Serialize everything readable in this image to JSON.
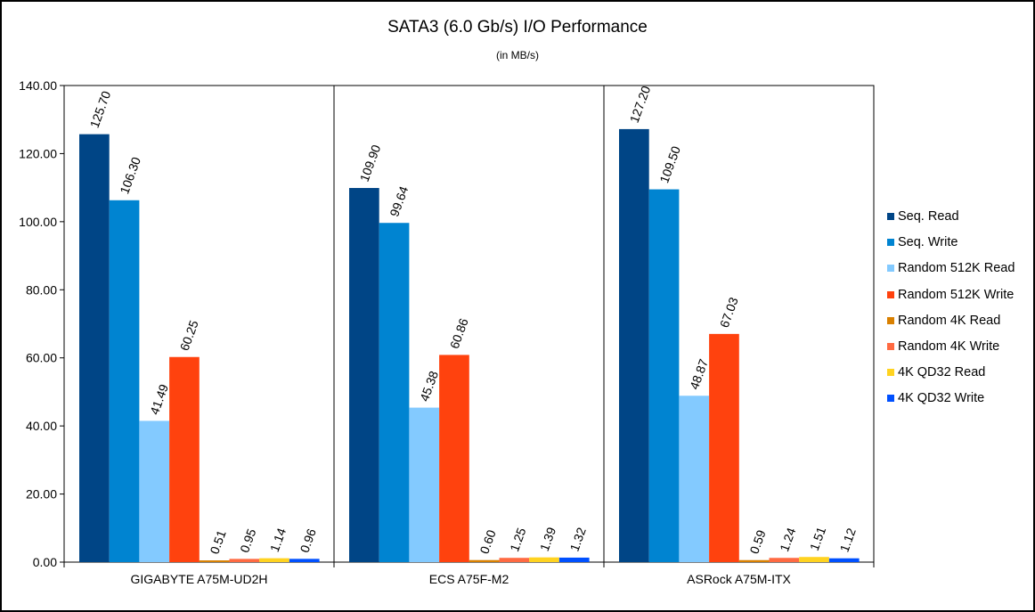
{
  "chart_data": {
    "type": "bar",
    "title": "SATA3 (6.0 Gb/s) I/O Performance",
    "subtitle": "(in MB/s)",
    "xlabel": "",
    "ylabel": "",
    "ylim": [
      0,
      140
    ],
    "ytick_step": 20,
    "grid": false,
    "legend_position": "right",
    "value_format": "two-decimals",
    "categories": [
      "GIGABYTE A75M-UD2H",
      "ECS A75F-M2",
      "ASRock A75M-ITX"
    ],
    "series": [
      {
        "name": "Seq. Read",
        "color": "#004586",
        "values": [
          125.7,
          109.9,
          127.2
        ]
      },
      {
        "name": "Seq. Write",
        "color": "#0084d1",
        "values": [
          106.3,
          99.64,
          109.5
        ]
      },
      {
        "name": "Random 512K Read",
        "color": "#83caff",
        "values": [
          41.49,
          45.38,
          48.87
        ]
      },
      {
        "name": "Random 512K Write",
        "color": "#ff420e",
        "values": [
          60.25,
          60.86,
          67.03
        ]
      },
      {
        "name": "Random 4K Read",
        "color": "#d98000",
        "values": [
          0.51,
          0.6,
          0.59
        ]
      },
      {
        "name": "Random 4K Write",
        "color": "#ff6a42",
        "values": [
          0.95,
          1.25,
          1.24
        ]
      },
      {
        "name": "4K QD32 Read",
        "color": "#ffd320",
        "values": [
          1.14,
          1.39,
          1.51
        ]
      },
      {
        "name": "4K QD32 Write",
        "color": "#0050ff",
        "values": [
          0.96,
          1.32,
          1.12
        ]
      }
    ]
  }
}
